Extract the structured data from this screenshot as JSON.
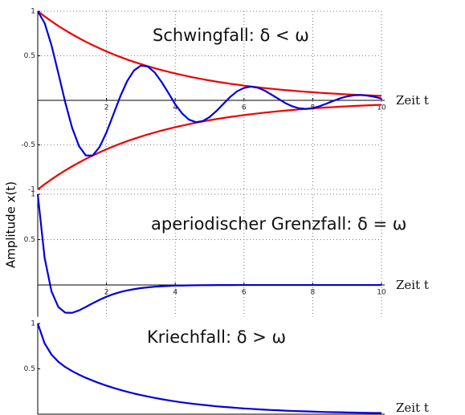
{
  "ylabel": "Amplitude x(t)",
  "chart_data": [
    {
      "type": "line",
      "title": "Schwingfall: δ < ω",
      "xlabel": "Zeit t",
      "x": [
        0,
        0.2,
        0.4,
        0.6,
        0.8,
        1,
        1.2,
        1.4,
        1.6,
        1.8,
        2,
        2.2,
        2.4,
        2.6,
        2.8,
        3,
        3.2,
        3.4,
        3.6,
        3.8,
        4,
        4.2,
        4.4,
        4.6,
        4.8,
        5,
        5.2,
        5.4,
        5.6,
        5.8,
        6,
        6.2,
        6.4,
        6.6,
        6.8,
        7,
        7.2,
        7.4,
        7.6,
        7.8,
        8,
        8.2,
        8.4,
        8.6,
        8.8,
        9,
        9.2,
        9.4,
        9.6,
        9.8,
        10
      ],
      "series": [
        {
          "color": "#ee0000",
          "values": [
            1,
            0.942,
            0.887,
            0.835,
            0.787,
            0.741,
            0.698,
            0.657,
            0.619,
            0.583,
            0.549,
            0.517,
            0.487,
            0.458,
            0.432,
            0.407,
            0.383,
            0.361,
            0.34,
            0.32,
            0.301,
            0.284,
            0.267,
            0.252,
            0.237,
            0.223,
            0.21,
            0.198,
            0.186,
            0.176,
            0.165,
            0.156,
            0.147,
            0.138,
            0.13,
            0.122,
            0.115,
            0.109,
            0.102,
            0.096,
            0.091,
            0.085,
            0.08,
            0.076,
            0.071,
            0.067,
            0.063,
            0.06,
            0.056,
            0.053,
            0.05
          ]
        },
        {
          "color": "#ee0000",
          "values": [
            -1,
            -0.942,
            -0.887,
            -0.835,
            -0.787,
            -0.741,
            -0.698,
            -0.657,
            -0.619,
            -0.583,
            -0.549,
            -0.517,
            -0.487,
            -0.458,
            -0.432,
            -0.407,
            -0.383,
            -0.361,
            -0.34,
            -0.32,
            -0.301,
            -0.284,
            -0.267,
            -0.252,
            -0.237,
            -0.223,
            -0.21,
            -0.198,
            -0.186,
            -0.176,
            -0.165,
            -0.156,
            -0.147,
            -0.138,
            -0.13,
            -0.122,
            -0.115,
            -0.109,
            -0.102,
            -0.096,
            -0.091,
            -0.085,
            -0.08,
            -0.076,
            -0.071,
            -0.067,
            -0.063,
            -0.06,
            -0.056,
            -0.053,
            -0.05
          ]
        },
        {
          "color": "#0000dd",
          "values": [
            1,
            0.867,
            0.618,
            0.303,
            -0.023,
            -0.308,
            -0.514,
            -0.619,
            -0.618,
            -0.523,
            -0.359,
            -0.159,
            0.043,
            0.215,
            0.335,
            0.39,
            0.38,
            0.314,
            0.207,
            0.084,
            -0.044,
            -0.147,
            -0.217,
            -0.245,
            -0.233,
            -0.187,
            -0.119,
            -0.04,
            0.039,
            0.102,
            0.139,
            0.154,
            0.142,
            0.11,
            0.064,
            0.017,
            -0.03,
            -0.066,
            -0.089,
            -0.096,
            -0.087,
            -0.066,
            -0.037,
            -0.006,
            0.023,
            0.044,
            0.057,
            0.06,
            0.053,
            0.039,
            0.02
          ]
        }
      ],
      "xlim": [
        0,
        10
      ],
      "xticks": [
        2,
        4,
        6,
        8,
        10
      ],
      "ylim": [
        -1,
        1
      ],
      "yticks": [
        -1,
        -0.5,
        0.5,
        1
      ],
      "grid": true
    },
    {
      "type": "line",
      "title": "aperiodischer Grenzfall: δ = ω",
      "xlabel": "Zeit t",
      "x": [
        0,
        0.2,
        0.4,
        0.6,
        0.8,
        1,
        1.2,
        1.4,
        1.6,
        1.8,
        2,
        2.2,
        2.4,
        2.6,
        2.8,
        3,
        3.2,
        3.4,
        3.6,
        3.8,
        4,
        4.2,
        4.4,
        4.6,
        4.8,
        5,
        5.2,
        5.4,
        5.6,
        5.8,
        6,
        6.2,
        6.4,
        6.6,
        6.8,
        7,
        7.2,
        7.4,
        7.6,
        7.8,
        8,
        8.2,
        8.4,
        8.6,
        8.8,
        9,
        9.2,
        9.4,
        9.6,
        9.8,
        10
      ],
      "series": [
        {
          "color": "#0000dd",
          "values": [
            1,
            0.299,
            -0.07,
            -0.243,
            -0.305,
            -0.307,
            -0.28,
            -0.242,
            -0.201,
            -0.163,
            -0.129,
            -0.101,
            -0.078,
            -0.06,
            -0.046,
            -0.034,
            -0.026,
            -0.019,
            -0.014,
            -0.011,
            -0.007,
            -0.006,
            -0.004,
            -0.003,
            -0.002,
            -0.002,
            -0.001,
            -0.001,
            -0.001,
            0,
            0,
            0,
            0,
            0,
            0,
            0,
            0,
            0,
            0,
            0,
            0,
            0,
            0,
            0,
            0,
            0,
            0,
            0,
            0,
            0,
            0
          ]
        }
      ],
      "xlim": [
        0,
        10
      ],
      "xticks": [
        2,
        4,
        6,
        8,
        10
      ],
      "ylim": [
        -0.35,
        1
      ],
      "yticks": [
        0.5,
        1
      ],
      "grid": true
    },
    {
      "type": "line",
      "title": "Kriechfall: δ > ω",
      "xlabel": "Zeit t",
      "x": [
        0,
        0.2,
        0.4,
        0.6,
        0.8,
        1,
        1.2,
        1.4,
        1.6,
        1.8,
        2,
        2.2,
        2.4,
        2.6,
        2.8,
        3,
        3.2,
        3.4,
        3.6,
        3.8,
        4,
        4.2,
        4.4,
        4.6,
        4.8,
        5,
        5.2,
        5.4,
        5.6,
        5.8,
        6,
        6.2,
        6.4,
        6.6,
        6.8,
        7,
        7.2,
        7.4,
        7.6,
        7.8,
        8,
        8.2,
        8.4,
        8.6,
        8.8,
        9,
        9.2,
        9.4,
        9.6,
        9.8,
        10
      ],
      "series": [
        {
          "color": "#0000dd",
          "values": [
            1,
            0.781,
            0.657,
            0.578,
            0.52,
            0.475,
            0.436,
            0.401,
            0.37,
            0.341,
            0.315,
            0.29,
            0.268,
            0.247,
            0.228,
            0.211,
            0.195,
            0.18,
            0.166,
            0.153,
            0.141,
            0.13,
            0.12,
            0.111,
            0.103,
            0.095,
            0.087,
            0.081,
            0.075,
            0.069,
            0.063,
            0.059,
            0.054,
            0.05,
            0.046,
            0.043,
            0.039,
            0.036,
            0.033,
            0.031,
            0.029,
            0.026,
            0.024,
            0.022,
            0.021,
            0.019,
            0.018,
            0.016,
            0.015,
            0.014,
            0.013
          ]
        }
      ],
      "xlim": [
        0,
        10
      ],
      "ylim": [
        0,
        1
      ],
      "yticks": [
        0.5,
        1
      ],
      "grid": false
    }
  ]
}
